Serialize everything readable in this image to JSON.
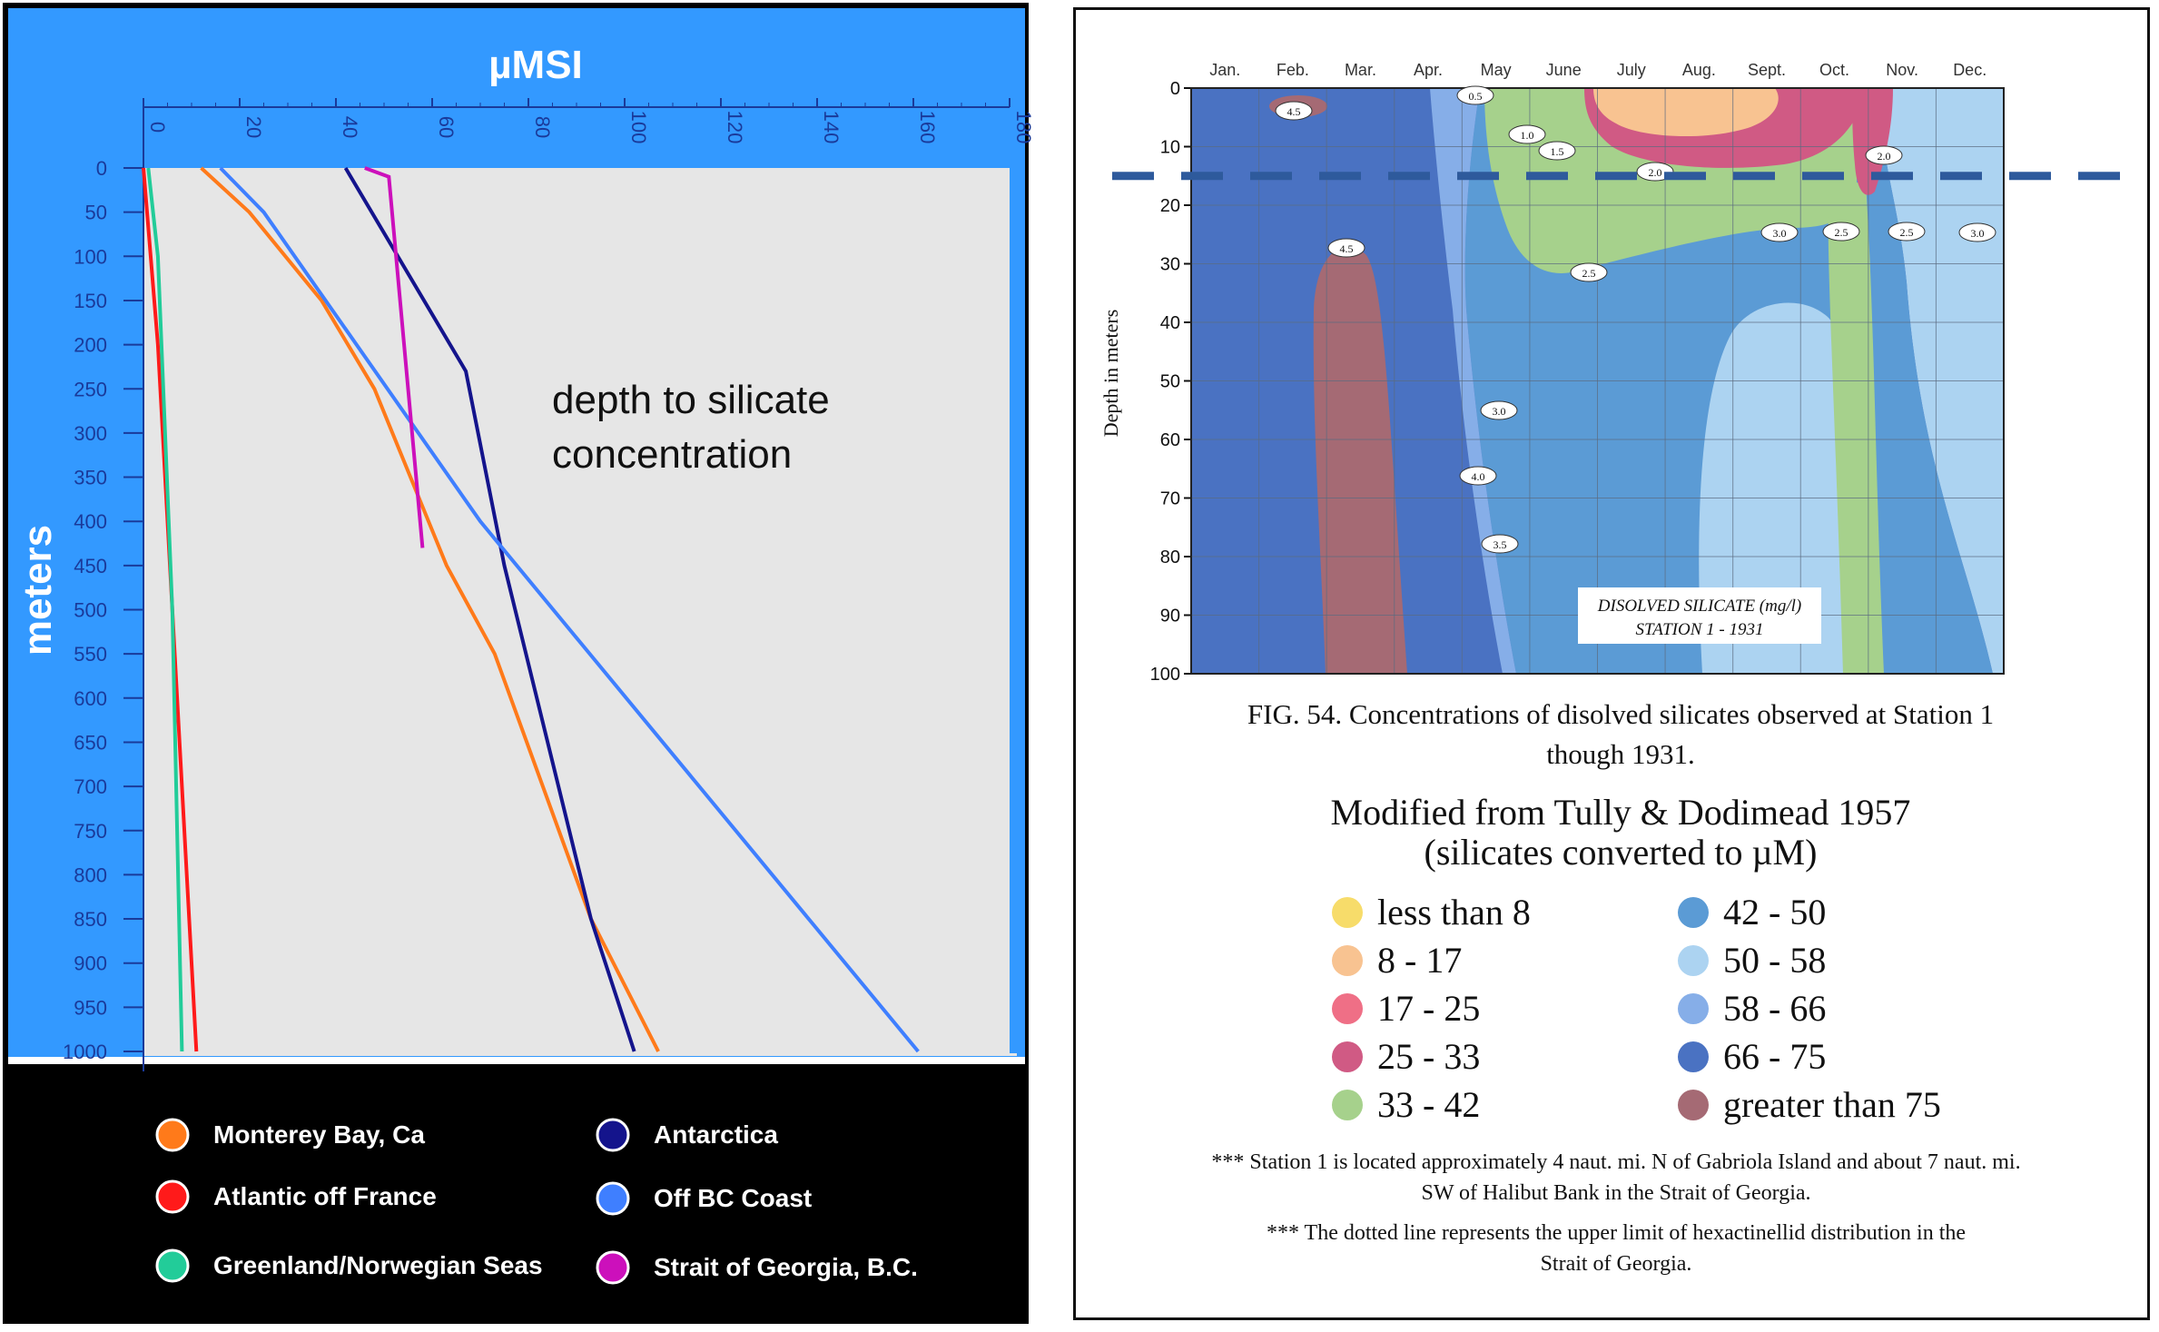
{
  "chart_data": [
    {
      "type": "line",
      "title": "µMSI",
      "annotation": [
        "depth to silicate",
        "concentration"
      ],
      "xlabel": "µMSI",
      "ylabel": "meters",
      "xlim": [
        0,
        180
      ],
      "ylim": [
        0,
        1000
      ],
      "y_inverted": true,
      "x_ticks": [
        0,
        20,
        40,
        60,
        80,
        100,
        120,
        140,
        160,
        180
      ],
      "y_ticks": [
        0,
        50,
        100,
        150,
        200,
        250,
        300,
        350,
        400,
        450,
        500,
        550,
        600,
        650,
        700,
        750,
        800,
        850,
        900,
        950,
        1000
      ],
      "series": [
        {
          "name": "Monterey Bay, Ca",
          "color": "#ff7a1a",
          "points": [
            [
              12,
              0
            ],
            [
              22,
              50
            ],
            [
              37,
              150
            ],
            [
              48,
              250
            ],
            [
              63,
              450
            ],
            [
              73,
              550
            ],
            [
              93,
              850
            ],
            [
              107,
              1000
            ]
          ]
        },
        {
          "name": "Atlantic off France",
          "color": "#ff1a1a",
          "points": [
            [
              0,
              0
            ],
            [
              3,
              200
            ],
            [
              6,
              500
            ],
            [
              11,
              1000
            ]
          ]
        },
        {
          "name": "Greenland/Norwegian Seas",
          "color": "#22cc99",
          "points": [
            [
              1,
              0
            ],
            [
              3,
              100
            ],
            [
              6,
              500
            ],
            [
              8,
              1000
            ]
          ]
        },
        {
          "name": "Antarctica",
          "color": "#14148c",
          "points": [
            [
              42,
              0
            ],
            [
              67,
              230
            ],
            [
              75,
              450
            ],
            [
              93,
              850
            ],
            [
              102,
              1000
            ]
          ]
        },
        {
          "name": "Off BC Coast",
          "color": "#3f7fff",
          "points": [
            [
              16,
              0
            ],
            [
              25,
              50
            ],
            [
              70,
              400
            ],
            [
              161,
              1000
            ]
          ]
        },
        {
          "name": "Strait of Georgia, B.C.",
          "color": "#cc10bb",
          "points": [
            [
              46,
              0
            ],
            [
              51,
              10
            ],
            [
              58,
              430
            ]
          ]
        }
      ]
    },
    {
      "type": "heatmap",
      "title": [
        "DISOLVED SILICATE (mg/l)",
        "STATION 1 - 1931"
      ],
      "ylabel": "Depth in meters",
      "x_ticks": [
        "Jan.",
        "Feb.",
        "Mar.",
        "Apr.",
        "May",
        "June",
        "July",
        "Aug.",
        "Sept.",
        "Oct.",
        "Nov.",
        "Dec."
      ],
      "y_ticks": [
        0,
        10,
        20,
        30,
        40,
        50,
        60,
        70,
        80,
        90,
        100
      ],
      "ylim": [
        0,
        100
      ],
      "contour_labels": [
        "0.5",
        "1.0",
        "1.5",
        "2.0",
        "2.0",
        "2.5",
        "2.5",
        "2.5",
        "3.0",
        "3.0",
        "3.0",
        "4.0",
        "3.5",
        "4.5",
        "4.5"
      ],
      "dashed_line_depth": 15
    }
  ],
  "figure_caption": [
    "FIG. 54. Concentrations of disolved silicates observed at Station 1",
    "though 1931."
  ],
  "legend": {
    "title": [
      "Modified from Tully & Dodimead 1957",
      "(silicates converted to µM)"
    ],
    "items": [
      {
        "label": "less than 8",
        "color": "#f7dc6a"
      },
      {
        "label": "8 - 17",
        "color": "#f8c391"
      },
      {
        "label": "17 - 25",
        "color": "#ef6f86"
      },
      {
        "label": "25 - 33",
        "color": "#d05a84"
      },
      {
        "label": "33 - 42",
        "color": "#a6d18c"
      },
      {
        "label": "42 - 50",
        "color": "#5b9bd5"
      },
      {
        "label": "50 - 58",
        "color": "#acd3f1"
      },
      {
        "label": "58 - 66",
        "color": "#86aee8"
      },
      {
        "label": "66 - 75",
        "color": "#4a72c2"
      },
      {
        "label": "greater than 75",
        "color": "#a56a74"
      }
    ]
  },
  "notes": [
    [
      "*** Station 1 is located approximately 4 naut. mi. N of Gabriola Island and about 7 naut. mi.",
      "SW of Halibut Bank in the Strait of Georgia."
    ],
    [
      "*** The dotted line represents the upper limit of hexactinellid distribution in the",
      "Strait of Georgia."
    ]
  ],
  "colors": {
    "frame_blue": "#3399ff",
    "plot_bg": "#e6e6e6",
    "axis_text": "#1a3a9a"
  }
}
